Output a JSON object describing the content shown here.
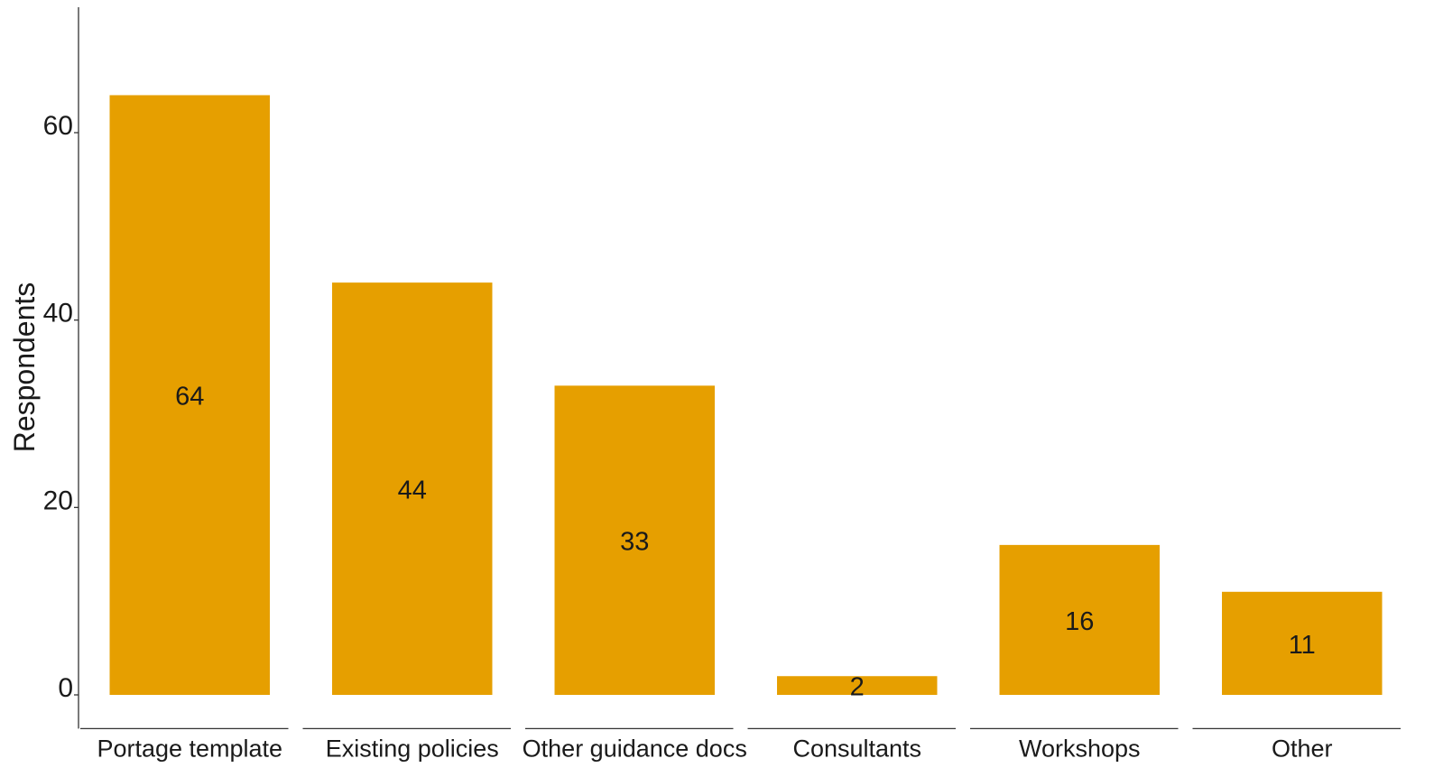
{
  "chart_data": {
    "type": "bar",
    "title": "",
    "xlabel": "",
    "ylabel": "Respondents",
    "categories": [
      "Portage template",
      "Existing policies",
      "Other guidance docs",
      "Consultants",
      "Workshops",
      "Other"
    ],
    "values": [
      64,
      44,
      33,
      2,
      16,
      11
    ],
    "data_labels": [
      "64",
      "44",
      "33",
      "2",
      "16",
      "11"
    ],
    "yticks": [
      0,
      20,
      40,
      60
    ],
    "ytick_labels": [
      "0",
      "20",
      "40",
      "60"
    ],
    "ylim": [
      -3.6,
      73.5
    ],
    "grid": false,
    "legend": "none",
    "colors": {
      "bar": "#E69F00",
      "text": "#1a1a1a",
      "axis": "#333333"
    }
  }
}
